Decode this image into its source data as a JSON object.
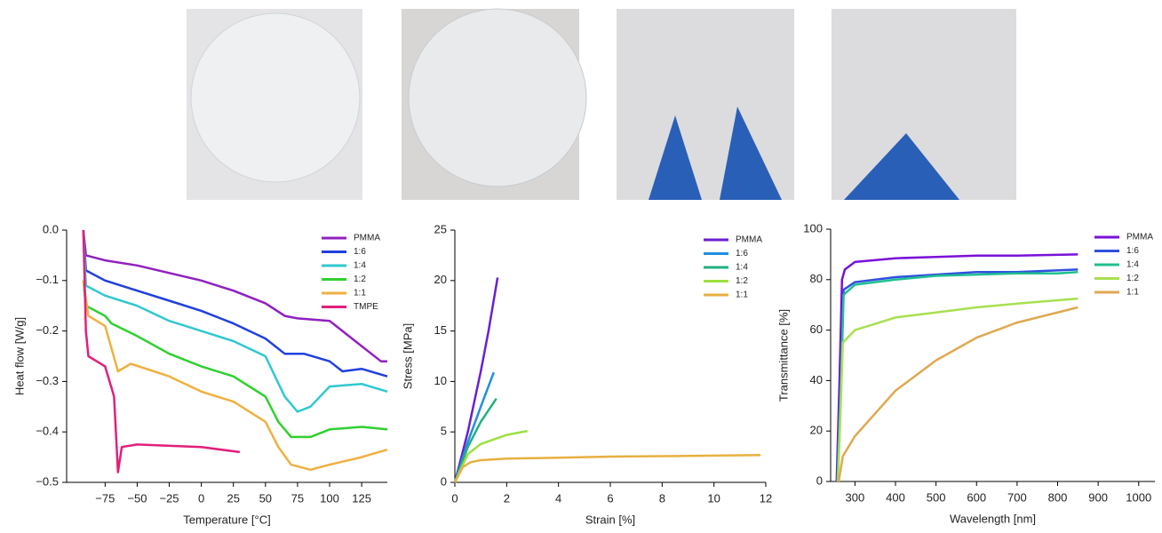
{
  "chart_data": [
    {
      "type": "line",
      "xlabel": "Temperature [°C]",
      "ylabel": "Heat flow [W/g]",
      "xlim": [
        -105,
        145
      ],
      "ylim": [
        -0.5,
        0
      ],
      "xticks": [
        {
          "value": -75,
          "label": "−75"
        },
        {
          "value": -50,
          "label": "−50"
        },
        {
          "value": -25,
          "label": "−25"
        },
        0,
        25,
        50,
        75,
        100,
        125
      ],
      "yticks": [
        {
          "value": -0.5,
          "label": "−0.5"
        },
        {
          "value": -0.4,
          "label": "−0.4"
        },
        {
          "value": -0.3,
          "label": "−0.3"
        },
        {
          "value": -0.2,
          "label": "−0.2"
        },
        {
          "value": -0.1,
          "label": "−0.1"
        },
        {
          "value": 0,
          "label": "0.0"
        }
      ],
      "series": [
        {
          "name": "PMMA",
          "color": "#9020c0",
          "x": [
            -92,
            -90,
            -75,
            -50,
            -25,
            0,
            25,
            50,
            65,
            75,
            100,
            110,
            120,
            130,
            140,
            145
          ],
          "values": [
            0,
            -0.05,
            -0.06,
            -0.07,
            -0.085,
            -0.1,
            -0.12,
            -0.145,
            -0.17,
            -0.175,
            -0.18,
            -0.2,
            -0.22,
            -0.24,
            -0.26,
            -0.26
          ]
        },
        {
          "name": "1:6",
          "color": "#2040e0",
          "x": [
            -92,
            -90,
            -75,
            -50,
            -25,
            0,
            25,
            50,
            65,
            80,
            100,
            110,
            125,
            145
          ],
          "values": [
            0,
            -0.08,
            -0.1,
            -0.12,
            -0.14,
            -0.16,
            -0.185,
            -0.215,
            -0.245,
            -0.245,
            -0.26,
            -0.28,
            -0.275,
            -0.29
          ]
        },
        {
          "name": "1:4",
          "color": "#30c8d0",
          "x": [
            -92,
            -90,
            -75,
            -50,
            -25,
            0,
            25,
            50,
            65,
            75,
            85,
            100,
            125,
            145
          ],
          "values": [
            0,
            -0.11,
            -0.13,
            -0.15,
            -0.18,
            -0.2,
            -0.22,
            -0.25,
            -0.33,
            -0.36,
            -0.35,
            -0.31,
            -0.305,
            -0.32
          ]
        },
        {
          "name": "1:2",
          "color": "#30d030",
          "x": [
            -92,
            -90,
            -75,
            -70,
            -50,
            -25,
            0,
            25,
            50,
            60,
            70,
            85,
            100,
            125,
            145
          ],
          "values": [
            -0.1,
            -0.15,
            -0.17,
            -0.185,
            -0.21,
            -0.245,
            -0.27,
            -0.29,
            -0.33,
            -0.38,
            -0.41,
            -0.41,
            -0.395,
            -0.39,
            -0.395
          ]
        },
        {
          "name": "1:1",
          "color": "#f0b040",
          "x": [
            -92,
            -88,
            -75,
            -65,
            -55,
            -25,
            0,
            25,
            50,
            60,
            70,
            85,
            100,
            125,
            145
          ],
          "values": [
            -0.1,
            -0.17,
            -0.19,
            -0.28,
            -0.265,
            -0.29,
            -0.32,
            -0.34,
            -0.38,
            -0.43,
            -0.465,
            -0.475,
            -0.465,
            -0.45,
            -0.435
          ]
        },
        {
          "name": "TMPE",
          "color": "#e0207a",
          "x": [
            -92,
            -90,
            -88,
            -75,
            -68,
            -65,
            -62,
            -50,
            0,
            30
          ],
          "values": [
            0,
            -0.2,
            -0.25,
            -0.27,
            -0.33,
            -0.48,
            -0.43,
            -0.425,
            -0.43,
            -0.44
          ]
        }
      ]
    },
    {
      "type": "line",
      "xlabel": "Strain [%]",
      "ylabel": "Stress [MPa]",
      "xlim": [
        0,
        12
      ],
      "ylim": [
        0,
        25
      ],
      "xticks": [
        0,
        2,
        4,
        6,
        8,
        10,
        12
      ],
      "yticks": [
        0,
        5,
        10,
        15,
        20,
        25
      ],
      "series": [
        {
          "name": "PMMA",
          "color": "#6a1fd0",
          "x": [
            0,
            0.5,
            1,
            1.3,
            1.65
          ],
          "values": [
            0,
            5,
            11,
            15,
            20.3
          ]
        },
        {
          "name": "1:6",
          "color": "#1f8fe0",
          "x": [
            0,
            0.5,
            1,
            1.5
          ],
          "values": [
            0,
            4,
            7.5,
            10.9
          ]
        },
        {
          "name": "1:4",
          "color": "#20b080",
          "x": [
            0,
            0.5,
            1,
            1.6
          ],
          "values": [
            0,
            3.5,
            6,
            8.3
          ]
        },
        {
          "name": "1:2",
          "color": "#9de040",
          "x": [
            0,
            0.5,
            1,
            2,
            2.8
          ],
          "values": [
            0,
            2.8,
            3.8,
            4.7,
            5.1
          ]
        },
        {
          "name": "1:1",
          "color": "#e8b040",
          "x": [
            0,
            0.3,
            0.6,
            1,
            2,
            4,
            6,
            8,
            10,
            11.8
          ],
          "values": [
            0,
            1.5,
            2,
            2.2,
            2.35,
            2.45,
            2.55,
            2.6,
            2.65,
            2.7
          ]
        }
      ]
    },
    {
      "type": "line",
      "xlabel": "Wavelength [nm]",
      "ylabel": "Transmittance [%]",
      "xlim": [
        240,
        1040
      ],
      "ylim": [
        0,
        100
      ],
      "xticks": [
        300,
        400,
        500,
        600,
        700,
        800,
        900,
        1000
      ],
      "yticks": [
        0,
        20,
        40,
        60,
        80,
        100
      ],
      "series": [
        {
          "name": "PMMA",
          "color": "#7a10d8",
          "x": [
            255,
            262,
            268,
            275,
            300,
            400,
            500,
            600,
            700,
            850
          ],
          "values": [
            0,
            40,
            80,
            84,
            87,
            88.5,
            89,
            89.5,
            89.5,
            90
          ]
        },
        {
          "name": "1:6",
          "color": "#3050e0",
          "x": [
            256,
            265,
            272,
            300,
            400,
            500,
            600,
            700,
            850
          ],
          "values": [
            0,
            40,
            76,
            79,
            81,
            82,
            83,
            83,
            84
          ]
        },
        {
          "name": "1:4",
          "color": "#20c090",
          "x": [
            257,
            266,
            272,
            300,
            400,
            500,
            600,
            700,
            800,
            850
          ],
          "values": [
            0,
            40,
            74,
            78,
            80,
            81.5,
            82,
            82.5,
            82.5,
            83
          ]
        },
        {
          "name": "1:2",
          "color": "#a8e050",
          "x": [
            258,
            265,
            270,
            300,
            400,
            500,
            600,
            700,
            850
          ],
          "values": [
            0,
            30,
            55,
            60,
            65,
            67,
            69,
            70.5,
            72.5
          ]
        },
        {
          "name": "1:1",
          "color": "#e0a850",
          "x": [
            260,
            270,
            300,
            400,
            500,
            600,
            700,
            850
          ],
          "values": [
            0,
            10,
            18,
            36,
            48,
            57,
            63,
            69
          ]
        }
      ]
    }
  ]
}
